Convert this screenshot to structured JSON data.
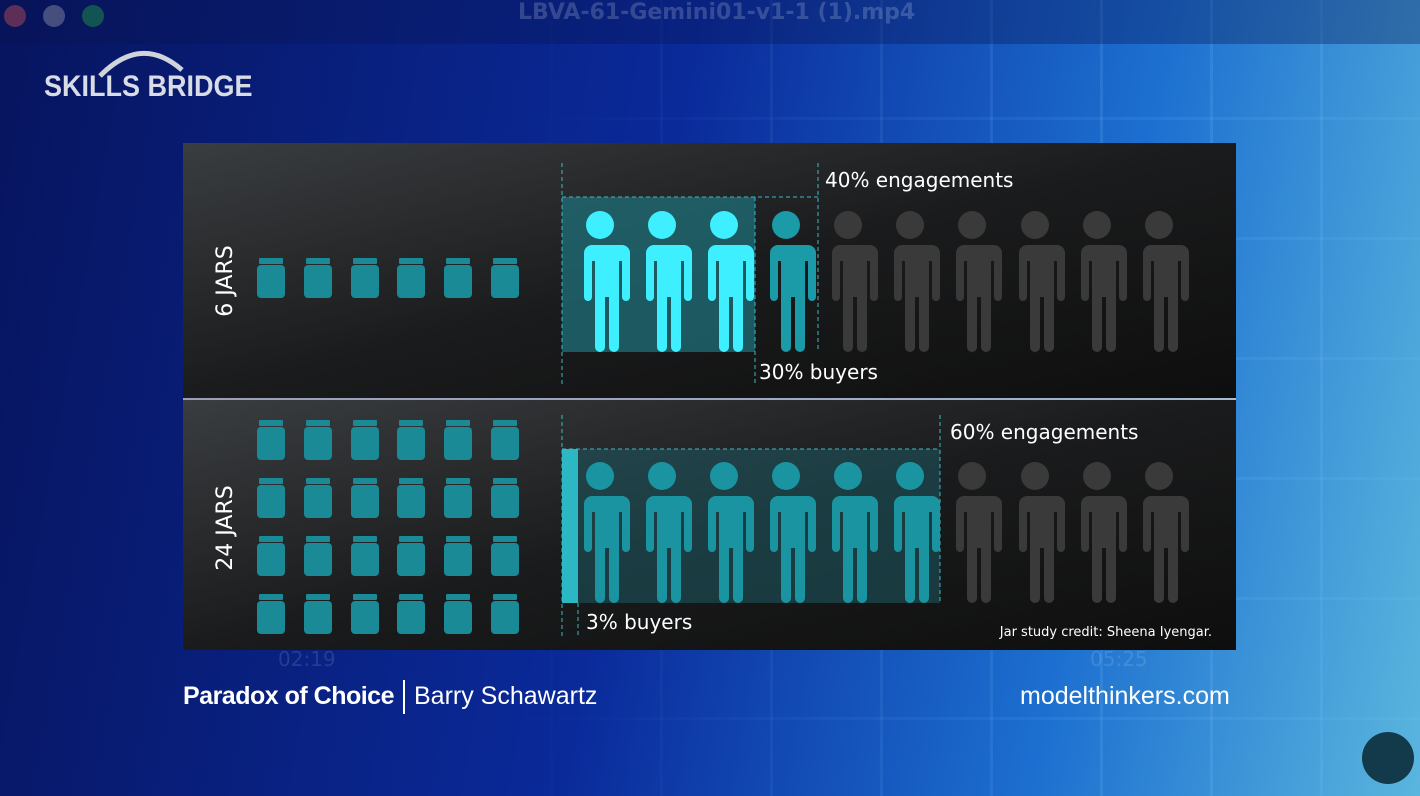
{
  "window": {
    "title": "LBVA-61-Gemini01-v1-1 (1).mp4"
  },
  "logo": "SKILLS BRIDGE",
  "panels": [
    {
      "label": "6 JARS",
      "engagements": "40% engagements",
      "buyers": "30% buyers"
    },
    {
      "label": "24 JARS",
      "engagements": "60% engagements",
      "buyers": "3% buyers"
    }
  ],
  "credit": "Jar study credit: Sheena Iyengar.",
  "player": {
    "elapsed": "02:19",
    "total": "05:25"
  },
  "footer": {
    "title": "Paradox of Choice",
    "author": "Barry Schawartz",
    "site": "modelthinkers.com"
  }
}
